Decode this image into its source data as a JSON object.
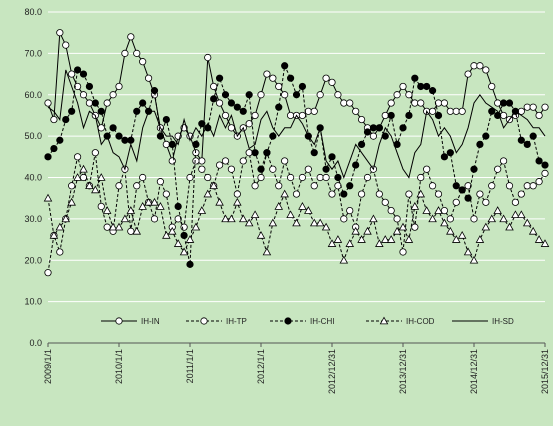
{
  "chart_data": {
    "type": "line",
    "title": "",
    "xlabel": "",
    "ylabel": "",
    "ylim": [
      0,
      80
    ],
    "yticks": [
      0.0,
      10.0,
      20.0,
      30.0,
      40.0,
      50.0,
      60.0,
      70.0,
      80.0
    ],
    "ytick_labels": [
      "0.0",
      "10.0",
      "20.0",
      "30.0",
      "40.0",
      "50.0",
      "60.0",
      "70.0",
      "80.0"
    ],
    "xtick_labels": [
      "2009/1/1",
      "2010/1/1",
      "2011/1/1",
      "2012/1/1",
      "2012/12/31",
      "2013/12/31",
      "2014/12/31",
      "2015/12/31"
    ],
    "xtick_index": [
      0,
      12,
      24,
      36,
      48,
      60,
      72,
      84
    ],
    "n_points": 85,
    "grid": "horizontal",
    "legend_position": "bottom",
    "series": [
      {
        "name": "IH-IN",
        "marker": "open-circle",
        "line": "solid",
        "values": [
          58,
          54,
          75,
          72,
          65,
          62,
          60,
          58,
          55,
          52,
          58,
          60,
          62,
          70,
          74,
          70,
          68,
          64,
          60,
          52,
          48,
          44,
          50,
          52,
          50,
          46,
          44,
          69,
          62,
          58,
          55,
          52,
          50,
          52,
          53,
          55,
          60,
          65,
          64,
          62,
          60,
          55,
          55,
          55,
          56,
          56,
          60,
          64,
          63,
          60,
          58,
          58,
          56,
          54,
          52,
          50,
          52,
          55,
          58,
          60,
          62,
          60,
          58,
          58,
          56,
          56,
          58,
          58,
          56,
          56,
          56,
          65,
          67,
          67,
          66,
          62,
          58,
          55,
          54,
          55,
          56,
          57,
          57,
          55,
          57
        ]
      },
      {
        "name": "IH-TP",
        "marker": "open-circle",
        "line": "dashed",
        "values": [
          17,
          26,
          22,
          30,
          38,
          45,
          40,
          38,
          46,
          33,
          28,
          27,
          38,
          42,
          27,
          38,
          40,
          34,
          30,
          39,
          36,
          28,
          30,
          28,
          40,
          44,
          42,
          40,
          38,
          43,
          44,
          42,
          36,
          44,
          46,
          38,
          40,
          46,
          42,
          38,
          44,
          40,
          36,
          40,
          42,
          38,
          40,
          40,
          36,
          38,
          30,
          32,
          28,
          36,
          40,
          42,
          36,
          34,
          32,
          30,
          22,
          36,
          28,
          40,
          42,
          38,
          36,
          32,
          30,
          34,
          37,
          38,
          30,
          36,
          34,
          38,
          42,
          44,
          38,
          34,
          36,
          38,
          38,
          39,
          41
        ]
      },
      {
        "name": "IH-CHI",
        "marker": "filled-circle",
        "line": "dashed",
        "values": [
          45,
          47,
          49,
          54,
          56,
          66,
          65,
          62,
          58,
          56,
          50,
          52,
          50,
          49,
          49,
          56,
          58,
          56,
          61,
          50,
          54,
          48,
          33,
          26,
          19,
          48,
          53,
          52,
          59,
          64,
          60,
          58,
          57,
          56,
          60,
          46,
          42,
          46,
          50,
          57,
          67,
          64,
          60,
          62,
          50,
          46,
          52,
          42,
          45,
          40,
          36,
          38,
          43,
          48,
          51,
          52,
          52,
          50,
          55,
          48,
          52,
          55,
          64,
          62,
          62,
          61,
          55,
          45,
          46,
          38,
          37,
          35,
          42,
          48,
          50,
          56,
          55,
          58,
          58,
          56,
          49,
          48,
          50,
          44,
          43
        ]
      },
      {
        "name": "IH-COD",
        "marker": "open-triangle",
        "line": "dashed",
        "values": [
          35,
          26,
          28,
          30,
          34,
          40,
          42,
          38,
          37,
          40,
          32,
          28,
          28,
          30,
          32,
          27,
          33,
          34,
          34,
          33,
          26,
          27,
          24,
          22,
          25,
          28,
          32,
          36,
          38,
          34,
          30,
          30,
          34,
          30,
          29,
          31,
          26,
          22,
          29,
          33,
          36,
          31,
          29,
          33,
          32,
          29,
          29,
          28,
          24,
          25,
          20,
          24,
          27,
          25,
          27,
          30,
          24,
          25,
          25,
          27,
          28,
          25,
          33,
          36,
          32,
          30,
          32,
          29,
          27,
          25,
          26,
          22,
          20,
          25,
          28,
          30,
          32,
          30,
          28,
          31,
          31,
          29,
          27,
          25,
          24
        ]
      },
      {
        "name": "IH-SD",
        "marker": "none",
        "line": "solid",
        "values": [
          57,
          56,
          54,
          66,
          62,
          58,
          52,
          56,
          55,
          48,
          50,
          46,
          45,
          42,
          48,
          44,
          52,
          56,
          56,
          52,
          50,
          50,
          48,
          54,
          49,
          52,
          50,
          53,
          50,
          55,
          52,
          55,
          50,
          52,
          47,
          48,
          54,
          56,
          52,
          50,
          52,
          52,
          55,
          53,
          50,
          48,
          52,
          44,
          42,
          44,
          40,
          44,
          48,
          46,
          44,
          42,
          48,
          52,
          50,
          46,
          42,
          40,
          46,
          48,
          56,
          54,
          50,
          52,
          50,
          46,
          48,
          52,
          58,
          60,
          58,
          57,
          56,
          52,
          54,
          56,
          55,
          54,
          52,
          52,
          50
        ]
      }
    ]
  }
}
